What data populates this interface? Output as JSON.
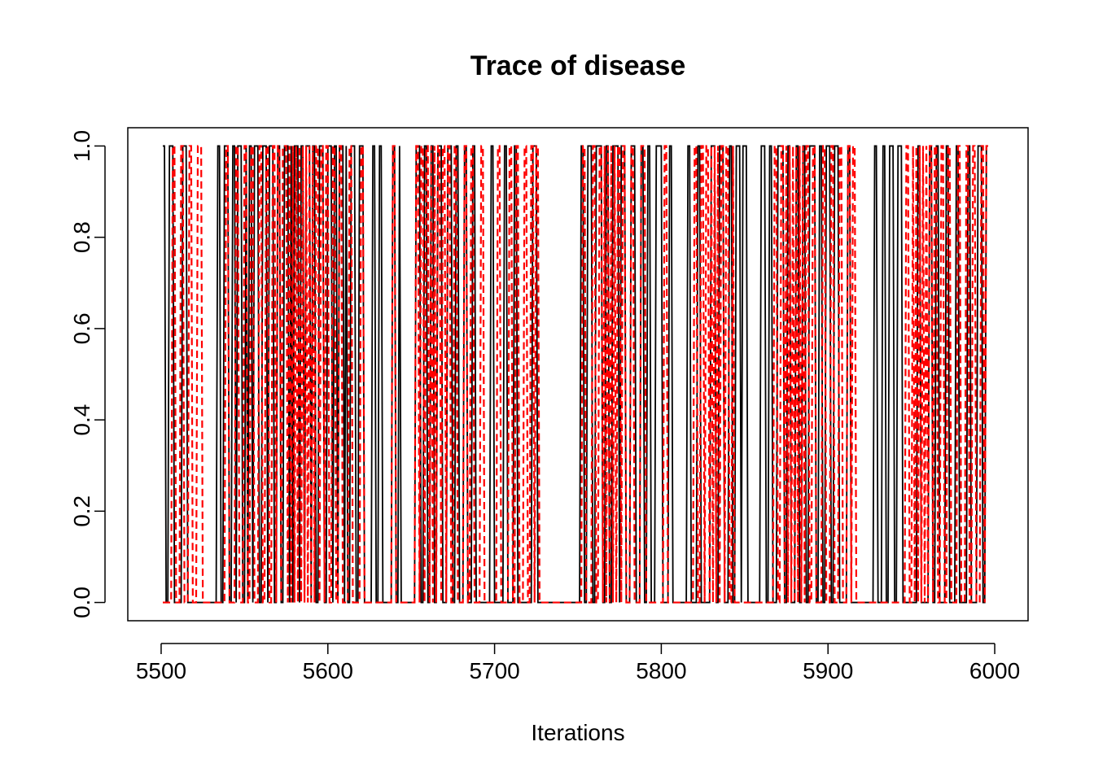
{
  "chart_data": {
    "type": "line",
    "title": "Trace of disease",
    "xlabel": "Iterations",
    "ylabel": "",
    "xlim": [
      5480,
      6020
    ],
    "ylim": [
      -0.04,
      1.04
    ],
    "x_ticks": [
      5500,
      5600,
      5700,
      5800,
      5900,
      6000
    ],
    "x_tick_labels": [
      "5500",
      "5600",
      "5700",
      "5800",
      "5900",
      "6000"
    ],
    "y_ticks": [
      0.0,
      0.2,
      0.4,
      0.6,
      0.8,
      1.0
    ],
    "y_tick_labels": [
      "0.0",
      "0.2",
      "0.4",
      "0.6",
      "0.8",
      "1.0"
    ],
    "grid": false,
    "legend": "none",
    "series": [
      {
        "color": "#000000",
        "style": "solid",
        "iteration_start": 5501,
        "iteration_step": 1,
        "values": [
          1,
          1,
          0,
          0,
          1,
          1,
          1,
          0,
          0,
          0,
          0,
          0,
          1,
          1,
          1,
          0,
          0,
          0,
          0,
          0,
          0,
          0,
          0,
          0,
          0,
          0,
          0,
          0,
          0,
          0,
          0,
          0,
          0,
          1,
          1,
          0,
          0,
          1,
          1,
          1,
          0,
          0,
          1,
          1,
          0,
          1,
          1,
          1,
          0,
          0,
          1,
          0,
          1,
          1,
          0,
          1,
          1,
          1,
          0,
          0,
          1,
          1,
          1,
          0,
          1,
          1,
          1,
          0,
          0,
          1,
          1,
          0,
          0,
          1,
          1,
          1,
          0,
          1,
          0,
          1,
          1,
          1,
          0,
          1,
          1,
          0,
          1,
          1,
          1,
          0,
          1,
          1,
          0,
          0,
          1,
          1,
          1,
          0,
          0,
          1,
          1,
          1,
          0,
          1,
          1,
          0,
          1,
          1,
          1,
          0,
          1,
          0,
          0,
          1,
          1,
          1,
          0,
          0,
          1,
          1,
          1,
          0,
          0,
          0,
          0,
          0,
          1,
          1,
          0,
          0,
          1,
          1,
          0,
          0,
          0,
          0,
          0,
          0,
          1,
          1,
          0,
          0,
          1,
          0,
          0,
          0,
          0,
          0,
          0,
          0,
          0,
          0,
          1,
          1,
          1,
          0,
          0,
          1,
          1,
          0,
          0,
          1,
          1,
          0,
          0,
          1,
          1,
          1,
          0,
          0,
          0,
          1,
          1,
          1,
          0,
          0,
          1,
          1,
          0,
          0,
          0,
          1,
          1,
          0,
          0,
          0,
          1,
          1,
          0,
          0,
          0,
          0,
          0,
          0,
          0,
          0,
          0,
          1,
          1,
          0,
          0,
          0,
          0,
          0,
          0,
          1,
          1,
          0,
          0,
          0,
          0,
          1,
          1,
          0,
          0,
          0,
          0,
          0,
          0,
          0,
          0,
          0,
          1,
          1,
          1,
          0,
          0,
          0,
          0,
          0,
          0,
          0,
          0,
          0,
          0,
          0,
          0,
          0,
          0,
          0,
          0,
          0,
          0,
          0,
          0,
          0,
          0,
          0,
          0,
          0,
          0,
          1,
          1,
          0,
          0,
          1,
          1,
          1,
          0,
          0,
          1,
          1,
          1,
          1,
          0,
          0,
          1,
          1,
          0,
          0,
          1,
          1,
          1,
          1,
          0,
          1,
          1,
          1,
          0,
          0,
          0,
          1,
          1,
          1,
          0,
          0,
          0,
          1,
          1,
          0,
          0,
          1,
          1,
          0,
          0,
          0,
          1,
          1,
          1,
          1,
          0,
          0,
          0,
          0,
          1,
          1,
          0,
          0,
          0,
          0,
          0,
          0,
          0,
          0,
          0,
          1,
          1,
          0,
          0,
          0,
          0,
          1,
          1,
          0,
          0,
          0,
          0,
          0,
          0,
          1,
          1,
          1,
          0,
          0,
          1,
          1,
          1,
          0,
          0,
          0,
          1,
          1,
          0,
          0,
          1,
          1,
          1,
          0,
          1,
          1,
          1,
          0,
          0,
          0,
          0,
          0,
          0,
          0,
          0,
          1,
          1,
          1,
          0,
          0,
          1,
          1,
          0,
          0,
          0,
          1,
          1,
          1,
          1,
          0,
          0,
          1,
          1,
          0,
          0,
          0,
          1,
          1,
          0,
          0,
          1,
          1,
          0,
          0,
          1,
          1,
          1,
          1,
          0,
          0,
          1,
          1,
          0,
          0,
          1,
          1,
          1,
          0,
          0,
          1,
          1,
          1,
          0,
          0,
          0,
          0,
          0,
          1,
          1,
          0,
          0,
          0,
          0,
          0,
          0,
          0,
          0,
          0,
          0,
          0,
          0,
          0,
          0,
          1,
          1,
          0,
          0,
          0,
          1,
          1,
          0,
          0,
          1,
          1,
          1,
          0,
          0,
          1,
          1,
          1,
          0,
          0,
          0,
          0,
          0,
          0,
          0,
          0,
          0,
          1,
          1,
          0,
          0,
          0,
          0,
          0,
          1,
          1,
          0,
          0,
          1,
          1,
          0,
          0,
          0,
          0,
          1,
          1,
          0,
          0,
          0,
          0,
          1,
          1,
          0,
          0,
          0,
          0,
          0,
          1,
          1,
          0,
          0,
          0,
          0,
          1,
          1,
          1,
          0,
          0,
          1,
          1
        ]
      },
      {
        "color": "#ff0000",
        "style": "dashed",
        "iteration_start": 5501,
        "iteration_step": 1,
        "values": [
          0,
          0,
          0,
          0,
          0,
          0,
          1,
          1,
          0,
          0,
          0,
          1,
          1,
          0,
          0,
          0,
          1,
          1,
          0,
          0,
          0,
          1,
          1,
          1,
          0,
          0,
          0,
          0,
          0,
          0,
          0,
          0,
          0,
          0,
          0,
          0,
          0,
          0,
          1,
          1,
          0,
          0,
          0,
          0,
          1,
          1,
          0,
          0,
          0,
          1,
          1,
          0,
          0,
          1,
          1,
          0,
          0,
          0,
          1,
          1,
          0,
          0,
          1,
          1,
          0,
          0,
          1,
          1,
          0,
          1,
          1,
          0,
          1,
          1,
          1,
          0,
          1,
          0,
          1,
          0,
          1,
          0,
          1,
          0,
          1,
          0,
          1,
          0,
          1,
          0,
          1,
          0,
          1,
          1,
          0,
          1,
          1,
          0,
          1,
          1,
          0,
          0,
          1,
          1,
          0,
          0,
          1,
          1,
          0,
          0,
          0,
          0,
          1,
          1,
          0,
          0,
          0,
          0,
          0,
          1,
          1,
          0,
          0,
          0,
          0,
          0,
          0,
          0,
          0,
          0,
          0,
          0,
          0,
          0,
          0,
          0,
          0,
          0,
          1,
          1,
          0,
          0,
          0,
          0,
          0,
          0,
          0,
          0,
          0,
          0,
          0,
          0,
          1,
          1,
          0,
          1,
          1,
          0,
          1,
          1,
          0,
          1,
          0,
          1,
          0,
          1,
          1,
          0,
          1,
          1,
          0,
          1,
          1,
          0,
          0,
          1,
          1,
          0,
          0,
          0,
          0,
          1,
          1,
          0,
          0,
          1,
          1,
          0,
          0,
          0,
          0,
          1,
          1,
          0,
          0,
          0,
          0,
          0,
          0,
          0,
          0,
          1,
          1,
          0,
          0,
          0,
          0,
          0,
          1,
          1,
          0,
          0,
          1,
          1,
          0,
          0,
          0,
          1,
          1,
          0,
          0,
          1,
          1,
          0,
          1,
          1,
          0,
          0,
          0,
          0,
          0,
          0,
          0,
          0,
          0,
          0,
          0,
          0,
          0,
          0,
          0,
          0,
          0,
          0,
          0,
          0,
          0,
          0,
          0,
          0,
          0,
          0,
          1,
          1,
          0,
          0,
          0,
          0,
          1,
          1,
          0,
          0,
          1,
          1,
          0,
          1,
          0,
          1,
          0,
          1,
          0,
          1,
          0,
          1,
          1,
          0,
          1,
          1,
          0,
          0,
          0,
          1,
          1,
          0,
          0,
          0,
          0,
          1,
          1,
          1,
          0,
          0,
          0,
          0,
          0,
          0,
          0,
          0,
          0,
          0,
          0,
          1,
          1,
          0,
          0,
          0,
          0,
          0,
          0,
          0,
          0,
          0,
          0,
          0,
          0,
          0,
          0,
          0,
          0,
          1,
          1,
          0,
          0,
          1,
          1,
          0,
          1,
          1,
          0,
          1,
          0,
          1,
          0,
          1,
          0,
          1,
          1,
          0,
          1,
          1,
          0,
          0,
          1,
          0,
          0,
          0,
          0,
          0,
          0,
          0,
          0,
          0,
          0,
          0,
          0,
          0,
          0,
          0,
          0,
          0,
          0,
          0,
          0,
          0,
          0,
          0,
          0,
          1,
          1,
          0,
          0,
          1,
          1,
          0,
          1,
          0,
          1,
          0,
          1,
          0,
          1,
          0,
          1,
          0,
          1,
          0,
          1,
          1,
          0,
          0,
          1,
          1,
          0,
          0,
          0,
          0,
          1,
          1,
          0,
          0,
          0,
          1,
          1,
          0,
          0,
          0,
          1,
          1,
          0,
          0,
          0,
          1,
          1,
          0,
          1,
          1,
          0,
          0,
          0,
          0,
          0,
          0,
          0,
          0,
          0,
          0,
          0,
          0,
          0,
          0,
          0,
          0,
          0,
          0,
          0,
          0,
          0,
          0,
          0,
          0,
          0,
          0,
          0,
          0,
          0,
          0,
          1,
          1,
          0,
          0,
          1,
          0,
          1,
          0,
          1,
          0,
          1,
          0,
          1,
          0,
          1,
          1,
          0,
          1,
          1,
          0,
          0,
          1,
          1,
          0,
          0,
          1,
          1,
          0,
          0,
          0,
          0,
          1,
          1,
          0,
          0,
          0,
          1,
          1,
          0,
          0,
          1,
          1,
          0,
          0,
          0,
          1,
          1,
          0,
          1,
          1
        ]
      }
    ]
  }
}
